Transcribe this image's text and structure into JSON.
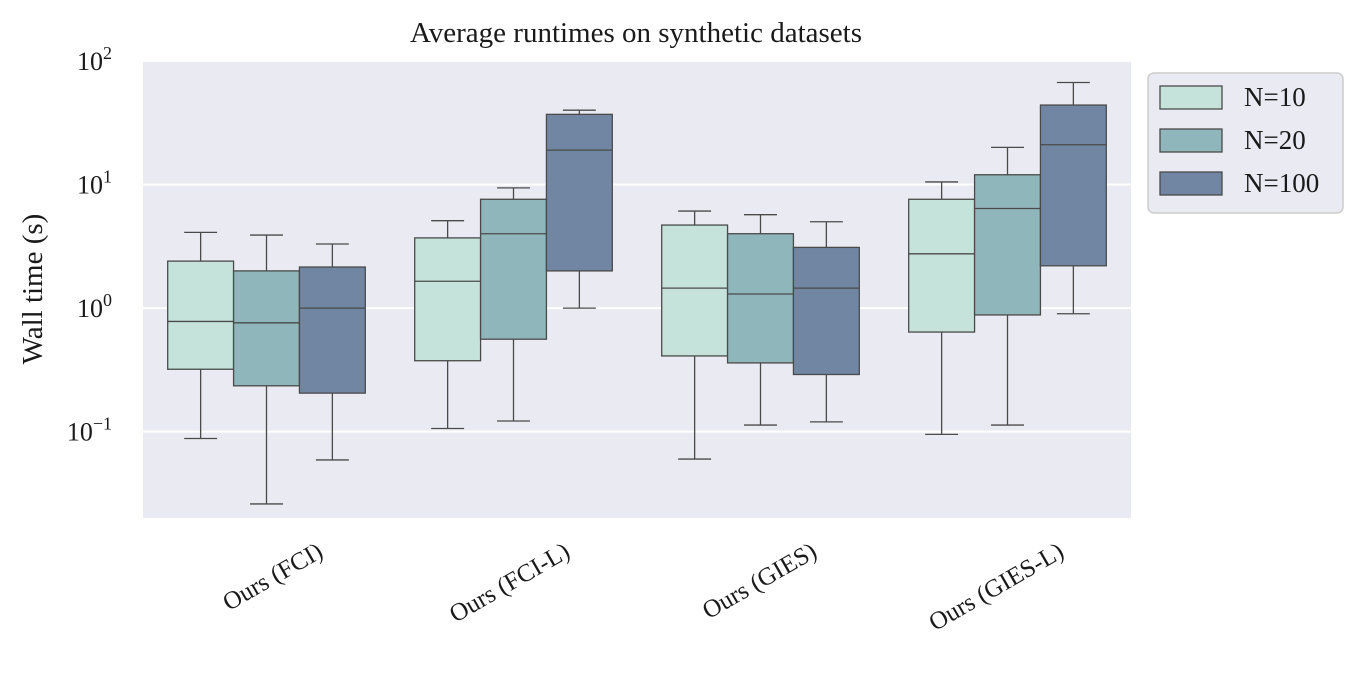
{
  "chart_data": {
    "type": "boxplot",
    "title": "Average runtimes on synthetic datasets",
    "xlabel": "",
    "ylabel": "Wall time (s)",
    "yscale": "log",
    "ylim": [
      0.02,
      100
    ],
    "yticks": [
      {
        "value": 0.1,
        "base": "10",
        "exp": "−1"
      },
      {
        "value": 1,
        "base": "10",
        "exp": "0"
      },
      {
        "value": 10,
        "base": "10",
        "exp": "1"
      },
      {
        "value": 100,
        "base": "10",
        "exp": "2"
      }
    ],
    "grid": true,
    "legend_position": "outside-top-right",
    "categories": [
      "Ours (FCI)",
      "Ours (FCI-L)",
      "Ours (GIES)",
      "Ours (GIES-L)"
    ],
    "series": [
      {
        "name": "N=10",
        "color": "#c6e3db",
        "boxes": [
          {
            "whislo": 0.088,
            "q1": 0.32,
            "med": 0.78,
            "q3": 2.4,
            "whishi": 4.1
          },
          {
            "whislo": 0.106,
            "q1": 0.375,
            "med": 1.65,
            "q3": 3.7,
            "whishi": 5.1
          },
          {
            "whislo": 0.06,
            "q1": 0.41,
            "med": 1.45,
            "q3": 4.7,
            "whishi": 6.1
          },
          {
            "whislo": 0.095,
            "q1": 0.64,
            "med": 2.75,
            "q3": 7.6,
            "whishi": 10.5
          }
        ]
      },
      {
        "name": "N=20",
        "color": "#8fb6bb",
        "boxes": [
          {
            "whislo": 0.026,
            "q1": 0.235,
            "med": 0.76,
            "q3": 2.0,
            "whishi": 3.9
          },
          {
            "whislo": 0.122,
            "q1": 0.56,
            "med": 4.0,
            "q3": 7.6,
            "whishi": 9.4
          },
          {
            "whislo": 0.113,
            "q1": 0.36,
            "med": 1.3,
            "q3": 4.0,
            "whishi": 5.7
          },
          {
            "whislo": 0.113,
            "q1": 0.88,
            "med": 6.4,
            "q3": 12.0,
            "whishi": 20.0
          }
        ]
      },
      {
        "name": "N=100",
        "color": "#7086a3",
        "boxes": [
          {
            "whislo": 0.059,
            "q1": 0.205,
            "med": 1.0,
            "q3": 2.15,
            "whishi": 3.3
          },
          {
            "whislo": 1.0,
            "q1": 2.0,
            "med": 19.0,
            "q3": 37.0,
            "whishi": 40.0
          },
          {
            "whislo": 0.12,
            "q1": 0.29,
            "med": 1.45,
            "q3": 3.1,
            "whishi": 5.0
          },
          {
            "whislo": 0.9,
            "q1": 2.2,
            "med": 21.0,
            "q3": 44.0,
            "whishi": 67.0
          }
        ]
      }
    ]
  }
}
